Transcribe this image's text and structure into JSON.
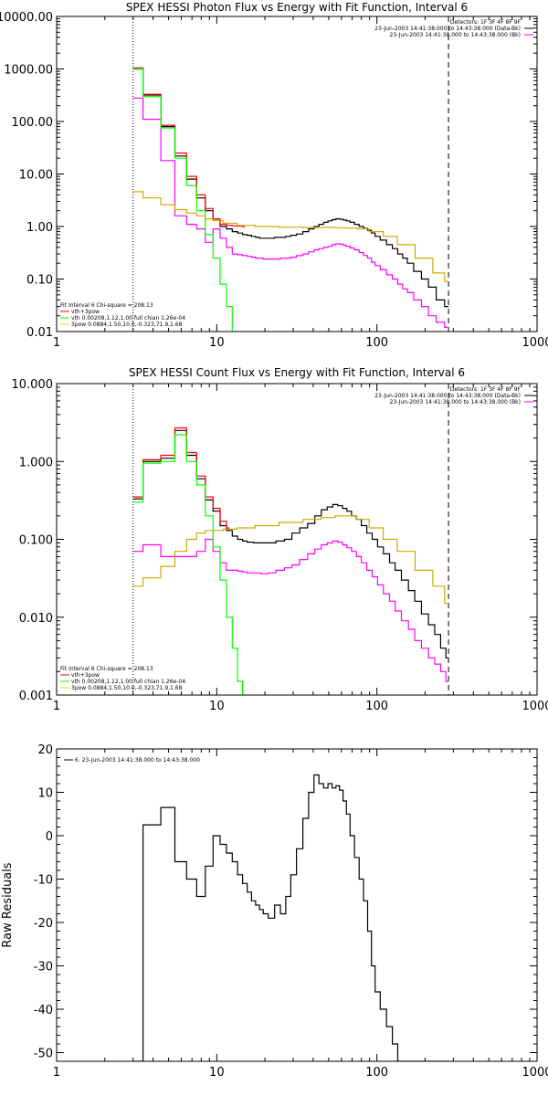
{
  "chart_data": [
    {
      "type": "line",
      "title": "SPEX HESSI Photon Flux vs Energy with Fit Function, Interval 6",
      "xlabel": "",
      "ylabel": "",
      "xscale": "log",
      "yscale": "log",
      "xlim": [
        1,
        1000
      ],
      "ylim": [
        0.01,
        10000
      ],
      "xticks": [
        1,
        10,
        100,
        1000
      ],
      "xtick_labels": [
        "1",
        "10",
        "100",
        "1000"
      ],
      "yticks": [
        0.01,
        0.1,
        1,
        10,
        100,
        1000,
        10000
      ],
      "ytick_labels": [
        "0.01",
        "0.10",
        "1.00",
        "10.00",
        "100.00",
        "1000.00",
        "10000.00"
      ],
      "vlines": [
        {
          "x": 3,
          "style": "dotted"
        },
        {
          "x": 280,
          "style": "dashed"
        }
      ],
      "info_legend": {
        "placement": "top-right",
        "entries": [
          {
            "text": "Detectors: 1F 3F 4F 8F 9F",
            "color": ""
          },
          {
            "text": "23-Jun-2003 14:41:38.000 to 14:43:38.000 (Data-Bk)",
            "color": "#000000"
          },
          {
            "text": "23-Jun-2003 14:41:38.000 to 14:43:38.000 (Bk)",
            "color": "#ff00ff"
          }
        ]
      },
      "fit_legend": {
        "placement": "bottom-left",
        "entries": [
          {
            "text": "Fit Interval 6   Chi-square = 208.13",
            "color": ""
          },
          {
            "text": "vth+3pow",
            "color": "#ff0000"
          },
          {
            "text": "vth 0.00208,1.12,1.00  full chian 1.26e-04",
            "color": "#00ff00"
          },
          {
            "text": "3pow 0.0884,1.50,10.0,-0.323,71.9,1.68",
            "color": "#ffd700"
          }
        ]
      },
      "series": [
        {
          "name": "Data-Bk",
          "color": "#000000",
          "x": [
            3,
            4,
            5,
            6,
            7,
            8,
            9,
            10,
            11,
            12,
            13,
            14,
            15,
            16,
            17,
            18,
            19,
            20,
            22,
            24,
            26,
            28,
            30,
            33,
            36,
            39,
            42,
            45,
            48,
            51,
            54,
            57,
            60,
            63,
            66,
            70,
            75,
            80,
            85,
            90,
            95,
            100,
            110,
            120,
            130,
            140,
            150,
            160,
            180,
            200,
            220,
            250,
            280
          ],
          "y": [
            1000,
            320,
            80,
            22,
            8,
            3.5,
            2,
            1.3,
            1.0,
            0.9,
            0.8,
            0.75,
            0.7,
            0.68,
            0.65,
            0.62,
            0.6,
            0.6,
            0.6,
            0.62,
            0.62,
            0.65,
            0.68,
            0.72,
            0.8,
            0.9,
            1.0,
            1.1,
            1.2,
            1.28,
            1.35,
            1.4,
            1.38,
            1.33,
            1.28,
            1.2,
            1.1,
            1.0,
            0.92,
            0.85,
            0.75,
            0.65,
            0.55,
            0.45,
            0.38,
            0.3,
            0.25,
            0.2,
            0.14,
            0.1,
            0.07,
            0.04,
            0.03
          ]
        },
        {
          "name": "Bk",
          "color": "#ff00ff",
          "x": [
            3,
            4,
            5,
            6,
            7,
            8,
            9,
            10,
            11,
            12,
            13,
            14,
            15,
            16,
            17,
            18,
            19,
            20,
            22,
            24,
            26,
            28,
            30,
            33,
            36,
            39,
            42,
            45,
            48,
            51,
            54,
            57,
            60,
            63,
            66,
            70,
            75,
            80,
            85,
            90,
            95,
            100,
            110,
            120,
            130,
            140,
            150,
            160,
            180,
            200,
            220,
            250,
            280
          ],
          "y": [
            280,
            110,
            18,
            1.6,
            1.1,
            0.9,
            0.5,
            0.9,
            0.6,
            0.4,
            0.3,
            0.29,
            0.28,
            0.27,
            0.26,
            0.25,
            0.25,
            0.24,
            0.24,
            0.24,
            0.25,
            0.25,
            0.26,
            0.28,
            0.3,
            0.33,
            0.36,
            0.38,
            0.4,
            0.42,
            0.45,
            0.47,
            0.46,
            0.44,
            0.42,
            0.39,
            0.36,
            0.32,
            0.28,
            0.25,
            0.21,
            0.18,
            0.15,
            0.12,
            0.1,
            0.08,
            0.065,
            0.055,
            0.04,
            0.03,
            0.02,
            0.015,
            0.012
          ]
        },
        {
          "name": "vth+3pow",
          "color": "#ff0000",
          "x": [
            3,
            4,
            5,
            6,
            7,
            8,
            9,
            10,
            11,
            12,
            13,
            14,
            15
          ],
          "y": [
            1050,
            330,
            85,
            25,
            9,
            4,
            2.2,
            1.4,
            1.1,
            1.05,
            1.03,
            1.02,
            1.0
          ]
        },
        {
          "name": "vth",
          "color": "#00ff00",
          "x": [
            3,
            4,
            5,
            6,
            7,
            8,
            9,
            10,
            11,
            12,
            13,
            14
          ],
          "y": [
            1000,
            300,
            75,
            20,
            6,
            2,
            0.7,
            0.25,
            0.08,
            0.03,
            0.01,
            0.003
          ]
        },
        {
          "name": "3pow",
          "color": "#ccaa00",
          "x": [
            3,
            4,
            5,
            6,
            7,
            8,
            9,
            10,
            12,
            15,
            20,
            30,
            40,
            50,
            60,
            70,
            80,
            100,
            120,
            150,
            200,
            250,
            280
          ],
          "y": [
            4.6,
            3.5,
            2.6,
            2.1,
            1.8,
            1.6,
            1.4,
            1.3,
            1.15,
            1.05,
            1.0,
            0.97,
            0.96,
            0.96,
            0.95,
            0.93,
            0.9,
            0.8,
            0.65,
            0.45,
            0.25,
            0.13,
            0.09
          ]
        }
      ]
    },
    {
      "type": "line",
      "title": "SPEX HESSI Count Flux vs Energy with Fit Function, Interval 6",
      "xlabel": "",
      "ylabel": "",
      "xscale": "log",
      "yscale": "log",
      "xlim": [
        1,
        1000
      ],
      "ylim": [
        0.001,
        10
      ],
      "xticks": [
        1,
        10,
        100,
        1000
      ],
      "xtick_labels": [
        "1",
        "10",
        "100",
        "1000"
      ],
      "yticks": [
        0.001,
        0.01,
        0.1,
        1,
        10
      ],
      "ytick_labels": [
        "0.001",
        "0.010",
        "0.100",
        "1.000",
        "10.000"
      ],
      "vlines": [
        {
          "x": 3,
          "style": "dotted"
        },
        {
          "x": 280,
          "style": "dashed"
        }
      ],
      "info_legend": {
        "placement": "top-right",
        "entries": [
          {
            "text": "Detectors: 1F 3F 4F 8F 9F",
            "color": ""
          },
          {
            "text": "23-Jun-2003 14:41:38.000 to 14:43:38.000 (Data-Bk)",
            "color": "#000000"
          },
          {
            "text": "23-Jun-2003 14:41:38.000 to 14:43:38.000 (Bk)",
            "color": "#ff00ff"
          }
        ]
      },
      "fit_legend": {
        "placement": "bottom-left",
        "entries": [
          {
            "text": "Fit Interval 6   Chi-square = 208.13",
            "color": ""
          },
          {
            "text": "vth+3pow",
            "color": "#ff0000"
          },
          {
            "text": "vth 0.00208,1.12,1.00  full chian 1.26e-04",
            "color": "#00ff00"
          },
          {
            "text": "3pow 0.0884,1.50,10.0,-0.323,71.9,1.68",
            "color": "#ffd700"
          }
        ]
      },
      "series": [
        {
          "name": "Data-Bk",
          "color": "#000000",
          "x": [
            3,
            4,
            5,
            6,
            7,
            8,
            9,
            10,
            11,
            12,
            13,
            14,
            15,
            16,
            18,
            20,
            22,
            25,
            28,
            31,
            35,
            39,
            43,
            47,
            51,
            55,
            59,
            63,
            67,
            72,
            77,
            83,
            90,
            97,
            105,
            115,
            125,
            135,
            150,
            165,
            180,
            200,
            220,
            240,
            260,
            280
          ],
          "y": [
            0.33,
            1.0,
            1.1,
            2.5,
            1.2,
            0.6,
            0.32,
            0.23,
            0.15,
            0.13,
            0.11,
            0.1,
            0.095,
            0.092,
            0.09,
            0.09,
            0.09,
            0.095,
            0.1,
            0.12,
            0.14,
            0.16,
            0.2,
            0.24,
            0.26,
            0.28,
            0.27,
            0.25,
            0.23,
            0.2,
            0.18,
            0.15,
            0.12,
            0.1,
            0.08,
            0.065,
            0.05,
            0.04,
            0.03,
            0.022,
            0.016,
            0.011,
            0.008,
            0.006,
            0.004,
            0.003
          ]
        },
        {
          "name": "Bk",
          "color": "#ff00ff",
          "x": [
            3,
            4,
            5,
            6,
            7,
            8,
            9,
            10,
            11,
            12,
            13,
            14,
            15,
            16,
            18,
            20,
            22,
            25,
            28,
            31,
            35,
            39,
            43,
            47,
            51,
            55,
            59,
            63,
            67,
            72,
            77,
            83,
            90,
            97,
            105,
            115,
            125,
            135,
            150,
            165,
            180,
            200,
            220,
            240,
            260,
            280
          ],
          "y": [
            0.07,
            0.085,
            0.06,
            0.06,
            0.06,
            0.07,
            0.1,
            0.07,
            0.05,
            0.04,
            0.04,
            0.039,
            0.038,
            0.037,
            0.037,
            0.036,
            0.037,
            0.04,
            0.043,
            0.047,
            0.055,
            0.065,
            0.075,
            0.085,
            0.09,
            0.095,
            0.092,
            0.085,
            0.078,
            0.07,
            0.06,
            0.05,
            0.04,
            0.033,
            0.026,
            0.02,
            0.016,
            0.012,
            0.009,
            0.007,
            0.005,
            0.004,
            0.003,
            0.0025,
            0.002,
            0.0015
          ]
        },
        {
          "name": "vth+3pow",
          "color": "#ff0000",
          "x": [
            3,
            4,
            5,
            6,
            7,
            8,
            9,
            10,
            11,
            12
          ],
          "y": [
            0.35,
            1.05,
            1.2,
            2.7,
            1.3,
            0.65,
            0.35,
            0.25,
            0.17,
            0.14
          ]
        },
        {
          "name": "vth",
          "color": "#00ff00",
          "x": [
            3,
            4,
            5,
            6,
            7,
            8,
            9,
            10,
            11,
            12,
            13,
            14,
            15
          ],
          "y": [
            0.3,
            0.95,
            1.0,
            2.2,
            1.0,
            0.5,
            0.2,
            0.08,
            0.03,
            0.01,
            0.004,
            0.0015,
            0.001
          ]
        },
        {
          "name": "3pow",
          "color": "#ccaa00",
          "x": [
            3,
            4,
            5,
            6,
            7,
            8,
            9,
            10,
            12,
            15,
            20,
            30,
            40,
            50,
            60,
            70,
            80,
            100,
            120,
            150,
            200,
            250,
            280
          ],
          "y": [
            0.025,
            0.032,
            0.045,
            0.07,
            0.1,
            0.12,
            0.13,
            0.13,
            0.135,
            0.14,
            0.15,
            0.165,
            0.18,
            0.19,
            0.2,
            0.2,
            0.18,
            0.14,
            0.1,
            0.07,
            0.04,
            0.025,
            0.015
          ]
        }
      ]
    },
    {
      "type": "line",
      "title": "",
      "xlabel": "",
      "ylabel": "Raw Residuals",
      "xscale": "log",
      "yscale": "linear",
      "xlim": [
        1,
        1000
      ],
      "ylim": [
        -52,
        20
      ],
      "xticks": [
        1,
        10,
        100,
        1000
      ],
      "xtick_labels": [
        "1",
        "10",
        "100",
        "1000"
      ],
      "yticks": [
        -50,
        -40,
        -30,
        -20,
        -10,
        0,
        10,
        20
      ],
      "ytick_labels": [
        "-50",
        "-40",
        "-30",
        "-20",
        "-10",
        "0",
        "10",
        "20"
      ],
      "legend": {
        "placement": "top-left",
        "entries": [
          {
            "text": "6. 23-Jun-2003 14:41:38.000 to 14:43:38.000",
            "color": "#000000"
          }
        ]
      },
      "series": [
        {
          "name": "6. 23-Jun-2003 14:41:38.000 to 14:43:38.000",
          "color": "#000000",
          "x": [
            3,
            4,
            5,
            6,
            7,
            8,
            9,
            10,
            11,
            12,
            13,
            14,
            15,
            16,
            17,
            18,
            19,
            20,
            22,
            24,
            26,
            28,
            30,
            33,
            36,
            39,
            42,
            45,
            48,
            51,
            54,
            57,
            60,
            63,
            66,
            70,
            75,
            80,
            85,
            90,
            95,
            100,
            110,
            120,
            130,
            140,
            150,
            160,
            180,
            200,
            220,
            250,
            280
          ],
          "y": [
            -52,
            2.5,
            6.5,
            -6,
            -10,
            -14,
            -7,
            0,
            -2,
            -4,
            -6,
            -9,
            -11,
            -13,
            -15,
            -16,
            -17,
            -18,
            -19,
            -16,
            -18,
            -14,
            -9,
            -3,
            4,
            10,
            14,
            12,
            11,
            12,
            11,
            11.5,
            10.5,
            8,
            5,
            0,
            -5,
            -10,
            -15,
            -22,
            -30,
            -36,
            -40,
            -44,
            -48,
            -52,
            -52,
            -52,
            -52,
            -52,
            -52,
            -52,
            -52
          ]
        }
      ]
    }
  ]
}
